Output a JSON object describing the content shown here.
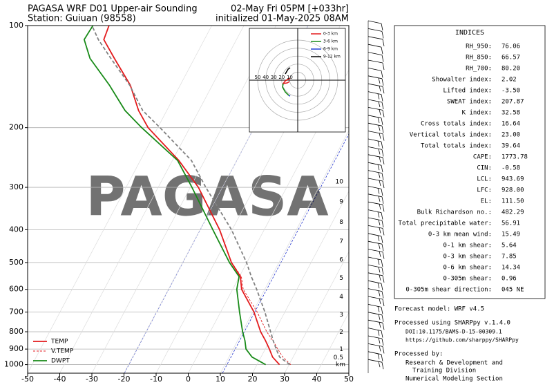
{
  "chart_data": {
    "type": "skewt",
    "title": "PAGASA WRF D01 Upper-air Sounding",
    "subtitle": "Station: Guiuan (98558)",
    "valid_time": "02-May Fri 05PM [+033hr]",
    "init_time": "initialized 01-May-2025 08AM",
    "watermark": "PAGASA",
    "xlim": [
      -50,
      50
    ],
    "xticks": [
      -50,
      -40,
      -30,
      -20,
      -10,
      0,
      10,
      20,
      30,
      40,
      50
    ],
    "ylim": [
      1060,
      100
    ],
    "yticks": [
      100,
      200,
      300,
      400,
      500,
      600,
      700,
      800,
      900,
      1000
    ],
    "log_y": true,
    "grid": true,
    "legend": "lower left",
    "pressure": [
      1000,
      950,
      900,
      850,
      800,
      700,
      600,
      550,
      500,
      400,
      300,
      250,
      200,
      178,
      150,
      125,
      110,
      100
    ],
    "series": [
      {
        "name": "TEMP",
        "color": "#e31a1c",
        "dash": false,
        "values": [
          27,
          23.6,
          21.3,
          18.7,
          15.7,
          10.4,
          2.8,
          0.3,
          -4.8,
          -13.9,
          -27.5,
          -38,
          -53,
          -58.8,
          -65.5,
          -74.9,
          -81.3,
          -82.0
        ]
      },
      {
        "name": "V.TEMP",
        "color": "#e31a1c",
        "dash": true,
        "values": [
          30.5,
          26.8,
          23.9,
          21,
          17.6,
          11.4,
          3.3,
          0.6,
          -4.7,
          -13.9,
          -27.5,
          -38,
          -53,
          -58.8,
          -65.5,
          -74.9,
          -81.3,
          -82.0
        ]
      },
      {
        "name": "DWPT",
        "color": "#178a17",
        "dash": false,
        "values": [
          22.7,
          17.2,
          14,
          12.3,
          10.1,
          5.9,
          1.3,
          -0.1,
          -5.4,
          -16,
          -29.5,
          -38.4,
          -55,
          -63,
          -72,
          -82.5,
          -87.4,
          -87
        ]
      },
      {
        "color": "#808080",
        "dash": true,
        "values": [
          30.2,
          25.8,
          23.4,
          21.1,
          18.8,
          13.8,
          7.5,
          3.7,
          -0.1,
          -10.2,
          -25.2,
          -34.1,
          -49.3,
          -57.5,
          -65.7,
          -76,
          -83,
          -87.3
        ]
      }
    ],
    "height_labels": [
      {
        "value": 10,
        "pressure": 289
      },
      {
        "value": 9,
        "pressure": 331
      },
      {
        "value": 8,
        "pressure": 380
      },
      {
        "value": 7,
        "pressure": 433
      },
      {
        "value": 6,
        "pressure": 491
      },
      {
        "value": 5,
        "pressure": 556
      },
      {
        "value": 4,
        "pressure": 631
      },
      {
        "value": 3,
        "pressure": 713
      },
      {
        "value": 2,
        "pressure": 802
      },
      {
        "value": 1,
        "pressure": 902
      },
      {
        "value": 0.5,
        "pressure": 954
      }
    ],
    "height_unit": "km",
    "hodograph": {
      "rings": [
        50,
        40,
        30,
        20,
        10
      ],
      "series": [
        {
          "name": "0-3 km",
          "color": "#e31a1c",
          "u": [
            -9.5,
            -15.5,
            -18.1,
            -12.9,
            -10.3
          ],
          "v": [
            2.6,
            -0.9,
            -4.3,
            -3.4,
            -1.7
          ]
        },
        {
          "name": "3-6 km",
          "color": "#178a17",
          "u": [
            -18.1,
            -19,
            -15.5,
            -11.2
          ],
          "v": [
            -4.3,
            -8.6,
            -14.7,
            -19
          ]
        },
        {
          "name": "6-9 km",
          "color": "#1f3fd6",
          "u": [
            -11.2,
            -9.5
          ],
          "v": [
            -19,
            -19.8
          ]
        },
        {
          "name": "9-12 km",
          "color": "#000000",
          "u": [
            -15.5,
            -12,
            -9.5
          ],
          "v": [
            7.8,
            13.8,
            15.5
          ]
        }
      ]
    }
  },
  "indices": {
    "title": "INDICES",
    "rows": [
      [
        "RH_950:",
        "76.06"
      ],
      [
        "RH_850:",
        "66.57"
      ],
      [
        "RH_700:",
        "80.20"
      ],
      [
        "Showalter index:",
        "2.02"
      ],
      [
        "Lifted index:",
        "-3.50"
      ],
      [
        "SWEAT index:",
        "207.87"
      ],
      [
        "K index:",
        "32.58"
      ],
      [
        "Cross totals index:",
        "16.64"
      ],
      [
        "Vertical totals index:",
        "23.00"
      ],
      [
        "Total totals index:",
        "39.64"
      ],
      [
        "CAPE:",
        "1773.78"
      ],
      [
        "CIN:",
        "-0.58"
      ],
      [
        "LCL:",
        "943.69"
      ],
      [
        "LFC:",
        "928.00"
      ],
      [
        "EL:",
        "111.50"
      ],
      [
        "Bulk Richardson no.:",
        "482.29"
      ],
      [
        "Total precipitable water:",
        "56.91"
      ],
      [
        "0-3 km mean wind:",
        "15.49"
      ],
      [
        "0-1 km shear:",
        "5.64"
      ],
      [
        "0-3 km shear:",
        "7.85"
      ],
      [
        "0-6 km shear:",
        "14.34"
      ],
      [
        "0-305m shear:",
        "0.96"
      ],
      [
        "0-305m shear direction:",
        "045 NE"
      ]
    ]
  },
  "footer": {
    "model": "Forecast model: WRF v4.5",
    "processed_using": "Processed using SHARPpy v.1.4.0",
    "doi": "DOI:10.1175/BAMS-D-15-00309.1",
    "url": "https://github.com/sharppy/SHARPpy",
    "processed_by": "Processed by:",
    "org": [
      "Research & Development and",
      "Training Division",
      "Numerical Modeling Section"
    ]
  }
}
